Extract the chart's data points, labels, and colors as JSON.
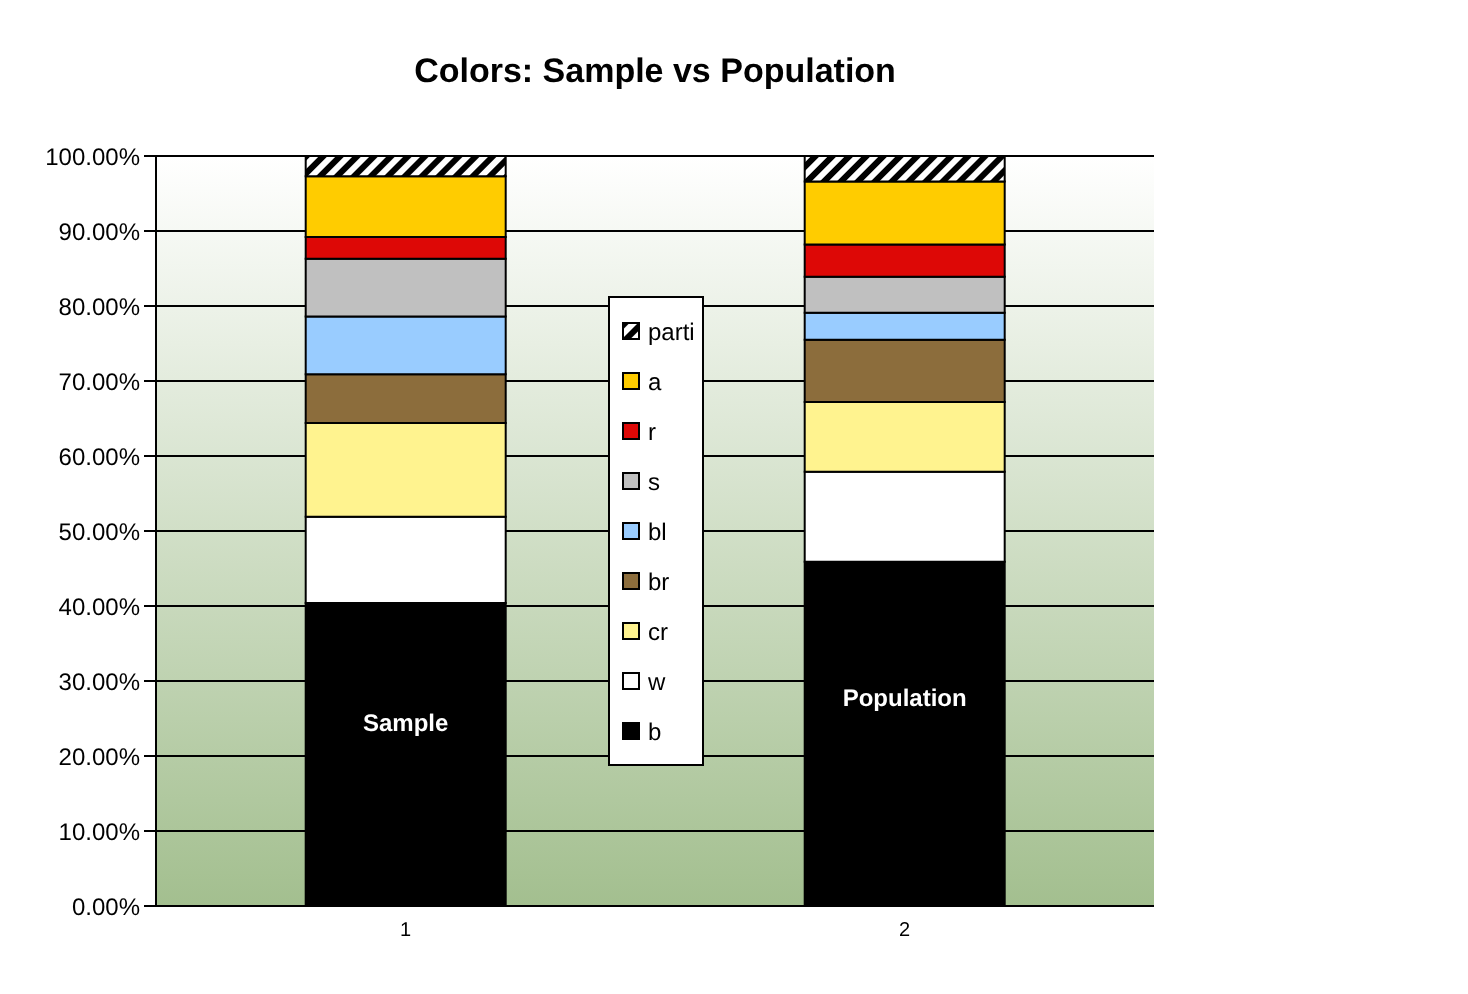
{
  "chart_data": {
    "type": "bar",
    "title": "Colors: Sample vs Population",
    "categories": [
      "1",
      "2"
    ],
    "stacked": true,
    "series": [
      {
        "name": "b",
        "color": "#000000",
        "values": [
          40.4,
          45.9
        ]
      },
      {
        "name": "w",
        "color": "#ffffff",
        "values": [
          11.5,
          12.0
        ]
      },
      {
        "name": "cr",
        "color": "#fff38f",
        "values": [
          12.5,
          9.3
        ]
      },
      {
        "name": "br",
        "color": "#8c6d3c",
        "values": [
          6.5,
          8.3
        ]
      },
      {
        "name": "bl",
        "color": "#99ccff",
        "values": [
          7.7,
          3.6
        ]
      },
      {
        "name": "s",
        "color": "#c0c0c0",
        "values": [
          7.7,
          4.8
        ]
      },
      {
        "name": "r",
        "color": "#dd0806",
        "values": [
          2.9,
          4.3
        ]
      },
      {
        "name": "a",
        "color": "#ffcc00",
        "values": [
          8.1,
          8.4
        ]
      },
      {
        "name": "parti",
        "color": "#000000",
        "values": [
          2.7,
          3.4
        ]
      }
    ],
    "ylim": [
      0,
      100
    ],
    "yticks": [
      {
        "value": 0,
        "label": "0.00%"
      },
      {
        "value": 10,
        "label": "10.00%"
      },
      {
        "value": 20,
        "label": "20.00%"
      },
      {
        "value": 30,
        "label": "30.00%"
      },
      {
        "value": 40,
        "label": "40.00%"
      },
      {
        "value": 50,
        "label": "50.00%"
      },
      {
        "value": 60,
        "label": "60.00%"
      },
      {
        "value": 70,
        "label": "70.00%"
      },
      {
        "value": 80,
        "label": "80.00%"
      },
      {
        "value": 90,
        "label": "90.00%"
      },
      {
        "value": 100,
        "label": "100.00%"
      }
    ],
    "grid": "y",
    "legend": "center",
    "annotations": [
      "Sample",
      "Population"
    ]
  }
}
